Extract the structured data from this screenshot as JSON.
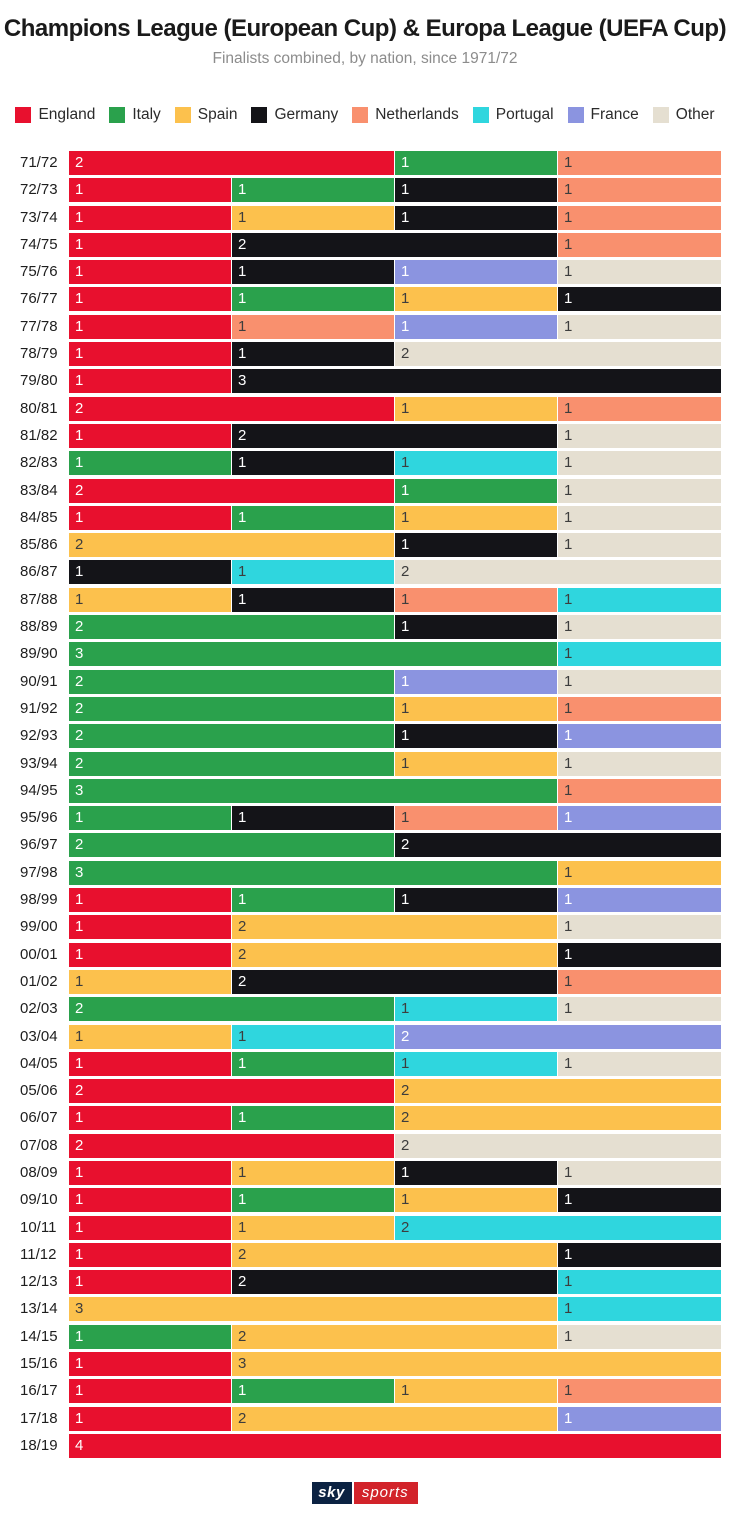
{
  "page": {
    "title": "Champions League (European Cup) & Europa League (UEFA Cup)",
    "subtitle": "Finalists combined, by nation, since 1971/72"
  },
  "footer": {
    "logo_sky": "sky",
    "logo_sports": "sports"
  },
  "chart_data": {
    "type": "bar",
    "orientation": "horizontal",
    "stacked": true,
    "x_max": 4,
    "grid": false,
    "legend_position": "top",
    "legend": [
      "England",
      "Italy",
      "Spain",
      "Germany",
      "Netherlands",
      "Portugal",
      "France",
      "Other"
    ],
    "series_colors": {
      "England": "#e8102e",
      "Italy": "#2aa14c",
      "Spain": "#fcc14d",
      "Germany": "#141418",
      "Netherlands": "#f9906e",
      "Portugal": "#2fd6de",
      "France": "#8b94e0",
      "Other": "#e5dfd1"
    },
    "dark_text_nations": [
      "Spain",
      "Netherlands",
      "Portugal",
      "Other"
    ],
    "rows": [
      {
        "season": "71/72",
        "segments": [
          [
            "England",
            2
          ],
          [
            "Italy",
            1
          ],
          [
            "Netherlands",
            1
          ]
        ]
      },
      {
        "season": "72/73",
        "segments": [
          [
            "England",
            1
          ],
          [
            "Italy",
            1
          ],
          [
            "Germany",
            1
          ],
          [
            "Netherlands",
            1
          ]
        ]
      },
      {
        "season": "73/74",
        "segments": [
          [
            "England",
            1
          ],
          [
            "Spain",
            1
          ],
          [
            "Germany",
            1
          ],
          [
            "Netherlands",
            1
          ]
        ]
      },
      {
        "season": "74/75",
        "segments": [
          [
            "England",
            1
          ],
          [
            "Germany",
            2
          ],
          [
            "Netherlands",
            1
          ]
        ]
      },
      {
        "season": "75/76",
        "segments": [
          [
            "England",
            1
          ],
          [
            "Germany",
            1
          ],
          [
            "France",
            1
          ],
          [
            "Other",
            1
          ]
        ]
      },
      {
        "season": "76/77",
        "segments": [
          [
            "England",
            1
          ],
          [
            "Italy",
            1
          ],
          [
            "Spain",
            1
          ],
          [
            "Germany",
            1
          ]
        ]
      },
      {
        "season": "77/78",
        "segments": [
          [
            "England",
            1
          ],
          [
            "Netherlands",
            1
          ],
          [
            "France",
            1
          ],
          [
            "Other",
            1
          ]
        ]
      },
      {
        "season": "78/79",
        "segments": [
          [
            "England",
            1
          ],
          [
            "Germany",
            1
          ],
          [
            "Other",
            2
          ]
        ]
      },
      {
        "season": "79/80",
        "segments": [
          [
            "England",
            1
          ],
          [
            "Germany",
            3
          ]
        ]
      },
      {
        "season": "80/81",
        "segments": [
          [
            "England",
            2
          ],
          [
            "Spain",
            1
          ],
          [
            "Netherlands",
            1
          ]
        ]
      },
      {
        "season": "81/82",
        "segments": [
          [
            "England",
            1
          ],
          [
            "Germany",
            2
          ],
          [
            "Other",
            1
          ]
        ]
      },
      {
        "season": "82/83",
        "segments": [
          [
            "Italy",
            1
          ],
          [
            "Germany",
            1
          ],
          [
            "Portugal",
            1
          ],
          [
            "Other",
            1
          ]
        ]
      },
      {
        "season": "83/84",
        "segments": [
          [
            "England",
            2
          ],
          [
            "Italy",
            1
          ],
          [
            "Other",
            1
          ]
        ]
      },
      {
        "season": "84/85",
        "segments": [
          [
            "England",
            1
          ],
          [
            "Italy",
            1
          ],
          [
            "Spain",
            1
          ],
          [
            "Other",
            1
          ]
        ]
      },
      {
        "season": "85/86",
        "segments": [
          [
            "Spain",
            2
          ],
          [
            "Germany",
            1
          ],
          [
            "Other",
            1
          ]
        ]
      },
      {
        "season": "86/87",
        "segments": [
          [
            "Germany",
            1
          ],
          [
            "Portugal",
            1
          ],
          [
            "Other",
            2
          ]
        ]
      },
      {
        "season": "87/88",
        "segments": [
          [
            "Spain",
            1
          ],
          [
            "Germany",
            1
          ],
          [
            "Netherlands",
            1
          ],
          [
            "Portugal",
            1
          ]
        ]
      },
      {
        "season": "88/89",
        "segments": [
          [
            "Italy",
            2
          ],
          [
            "Germany",
            1
          ],
          [
            "Other",
            1
          ]
        ]
      },
      {
        "season": "89/90",
        "segments": [
          [
            "Italy",
            3
          ],
          [
            "Portugal",
            1
          ]
        ]
      },
      {
        "season": "90/91",
        "segments": [
          [
            "Italy",
            2
          ],
          [
            "France",
            1
          ],
          [
            "Other",
            1
          ]
        ]
      },
      {
        "season": "91/92",
        "segments": [
          [
            "Italy",
            2
          ],
          [
            "Spain",
            1
          ],
          [
            "Netherlands",
            1
          ]
        ]
      },
      {
        "season": "92/93",
        "segments": [
          [
            "Italy",
            2
          ],
          [
            "Germany",
            1
          ],
          [
            "France",
            1
          ]
        ]
      },
      {
        "season": "93/94",
        "segments": [
          [
            "Italy",
            2
          ],
          [
            "Spain",
            1
          ],
          [
            "Other",
            1
          ]
        ]
      },
      {
        "season": "94/95",
        "segments": [
          [
            "Italy",
            3
          ],
          [
            "Netherlands",
            1
          ]
        ]
      },
      {
        "season": "95/96",
        "segments": [
          [
            "Italy",
            1
          ],
          [
            "Germany",
            1
          ],
          [
            "Netherlands",
            1
          ],
          [
            "France",
            1
          ]
        ]
      },
      {
        "season": "96/97",
        "segments": [
          [
            "Italy",
            2
          ],
          [
            "Germany",
            2
          ]
        ]
      },
      {
        "season": "97/98",
        "segments": [
          [
            "Italy",
            3
          ],
          [
            "Spain",
            1
          ]
        ]
      },
      {
        "season": "98/99",
        "segments": [
          [
            "England",
            1
          ],
          [
            "Italy",
            1
          ],
          [
            "Germany",
            1
          ],
          [
            "France",
            1
          ]
        ]
      },
      {
        "season": "99/00",
        "segments": [
          [
            "England",
            1
          ],
          [
            "Spain",
            2
          ],
          [
            "Other",
            1
          ]
        ]
      },
      {
        "season": "00/01",
        "segments": [
          [
            "England",
            1
          ],
          [
            "Spain",
            2
          ],
          [
            "Germany",
            1
          ]
        ]
      },
      {
        "season": "01/02",
        "segments": [
          [
            "Spain",
            1
          ],
          [
            "Germany",
            2
          ],
          [
            "Netherlands",
            1
          ]
        ]
      },
      {
        "season": "02/03",
        "segments": [
          [
            "Italy",
            2
          ],
          [
            "Portugal",
            1
          ],
          [
            "Other",
            1
          ]
        ]
      },
      {
        "season": "03/04",
        "segments": [
          [
            "Spain",
            1
          ],
          [
            "Portugal",
            1
          ],
          [
            "France",
            2
          ]
        ]
      },
      {
        "season": "04/05",
        "segments": [
          [
            "England",
            1
          ],
          [
            "Italy",
            1
          ],
          [
            "Portugal",
            1
          ],
          [
            "Other",
            1
          ]
        ]
      },
      {
        "season": "05/06",
        "segments": [
          [
            "England",
            2
          ],
          [
            "Spain",
            2
          ]
        ]
      },
      {
        "season": "06/07",
        "segments": [
          [
            "England",
            1
          ],
          [
            "Italy",
            1
          ],
          [
            "Spain",
            2
          ]
        ]
      },
      {
        "season": "07/08",
        "segments": [
          [
            "England",
            2
          ],
          [
            "Other",
            2
          ]
        ]
      },
      {
        "season": "08/09",
        "segments": [
          [
            "England",
            1
          ],
          [
            "Spain",
            1
          ],
          [
            "Germany",
            1
          ],
          [
            "Other",
            1
          ]
        ]
      },
      {
        "season": "09/10",
        "segments": [
          [
            "England",
            1
          ],
          [
            "Italy",
            1
          ],
          [
            "Spain",
            1
          ],
          [
            "Germany",
            1
          ]
        ]
      },
      {
        "season": "10/11",
        "segments": [
          [
            "England",
            1
          ],
          [
            "Spain",
            1
          ],
          [
            "Portugal",
            2
          ]
        ]
      },
      {
        "season": "11/12",
        "segments": [
          [
            "England",
            1
          ],
          [
            "Spain",
            2
          ],
          [
            "Germany",
            1
          ]
        ]
      },
      {
        "season": "12/13",
        "segments": [
          [
            "England",
            1
          ],
          [
            "Germany",
            2
          ],
          [
            "Portugal",
            1
          ]
        ]
      },
      {
        "season": "13/14",
        "segments": [
          [
            "Spain",
            3
          ],
          [
            "Portugal",
            1
          ]
        ]
      },
      {
        "season": "14/15",
        "segments": [
          [
            "Italy",
            1
          ],
          [
            "Spain",
            2
          ],
          [
            "Other",
            1
          ]
        ]
      },
      {
        "season": "15/16",
        "segments": [
          [
            "England",
            1
          ],
          [
            "Spain",
            3
          ]
        ]
      },
      {
        "season": "16/17",
        "segments": [
          [
            "England",
            1
          ],
          [
            "Italy",
            1
          ],
          [
            "Spain",
            1
          ],
          [
            "Netherlands",
            1
          ]
        ]
      },
      {
        "season": "17/18",
        "segments": [
          [
            "England",
            1
          ],
          [
            "Spain",
            2
          ],
          [
            "France",
            1
          ]
        ]
      },
      {
        "season": "18/19",
        "segments": [
          [
            "England",
            4
          ]
        ]
      }
    ]
  }
}
